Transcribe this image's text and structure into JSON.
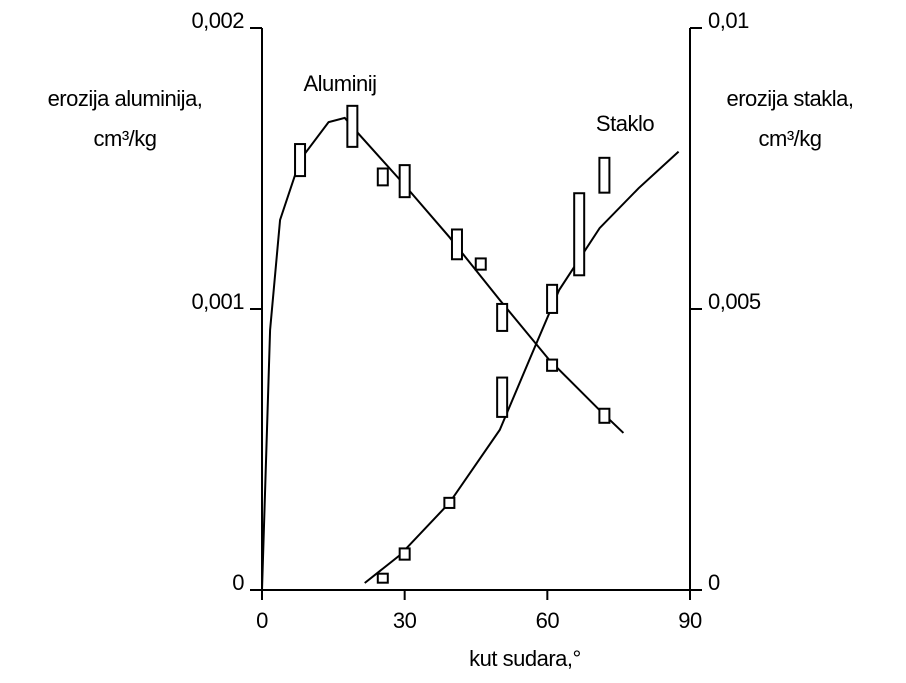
{
  "chart_data": {
    "type": "scatter-fit",
    "x_label": "kut sudara,°",
    "y_label": [
      "erozija aluminija,",
      "cm³/kg"
    ],
    "y2_label": [
      "erozija stakla,",
      "cm³/kg"
    ],
    "xlim": [
      0,
      90
    ],
    "xticks": [
      0,
      30,
      60,
      90
    ],
    "ylim": [
      0,
      0.002
    ],
    "yticks": [
      0,
      {
        "value": 0.001,
        "label": "0,001"
      },
      {
        "value": 0.002,
        "label": "0,002"
      }
    ],
    "y2lim": [
      0,
      0.01
    ],
    "y2ticks": [
      0,
      {
        "value": 0.005,
        "label": "0,005"
      },
      {
        "value": 0.01,
        "label": "0,01"
      }
    ],
    "series": [
      {
        "name": "Aluminij",
        "color": "#000000",
        "axis": "y",
        "x": [
          8,
          19,
          25.4,
          30,
          41,
          46,
          50.5,
          61,
          72
        ],
        "values": [
          0.00153,
          0.00165,
          0.00147,
          0.001455,
          0.00123,
          0.00116,
          0.00097,
          0.0008,
          0.00062
        ],
        "errors": [
          5.7e-05,
          7.3e-05,
          3e-05,
          5.7e-05,
          5.3e-05,
          2e-05,
          4.8e-05,
          2e-05,
          2.5e-05
        ],
        "fit": {
          "x": [
            0,
            1.7,
            3.8,
            8,
            14,
            17.4,
            20.5,
            29,
            39.4,
            50,
            60.4,
            71,
            76
          ],
          "values": [
            0,
            0.000925,
            0.001317,
            0.00153,
            0.001665,
            0.00168,
            0.00162,
            0.00146,
            0.001256,
            0.001032,
            0.000819,
            0.00064,
            0.000559
          ]
        }
      },
      {
        "name": "Staklo",
        "color": "#000000",
        "axis": "y2",
        "x": [
          25.4,
          30,
          39.4,
          50.5,
          61,
          66.7,
          72
        ],
        "values": [
          0.00021,
          0.00064,
          0.00155,
          0.00343,
          0.00518,
          0.00633,
          0.00738
        ],
        "errors": [
          8e-05,
          0.0001,
          9e-05,
          0.00035,
          0.00025,
          0.00073,
          0.00031
        ],
        "fit": {
          "x": [
            21.6,
            29,
            39.4,
            50,
            56.2,
            62.5,
            71,
            79.2,
            87.6
          ],
          "values": [
            0.000125,
            0.00062,
            0.00155,
            0.00285,
            0.00409,
            0.00534,
            0.00644,
            0.00715,
            0.0078
          ]
        }
      }
    ]
  }
}
